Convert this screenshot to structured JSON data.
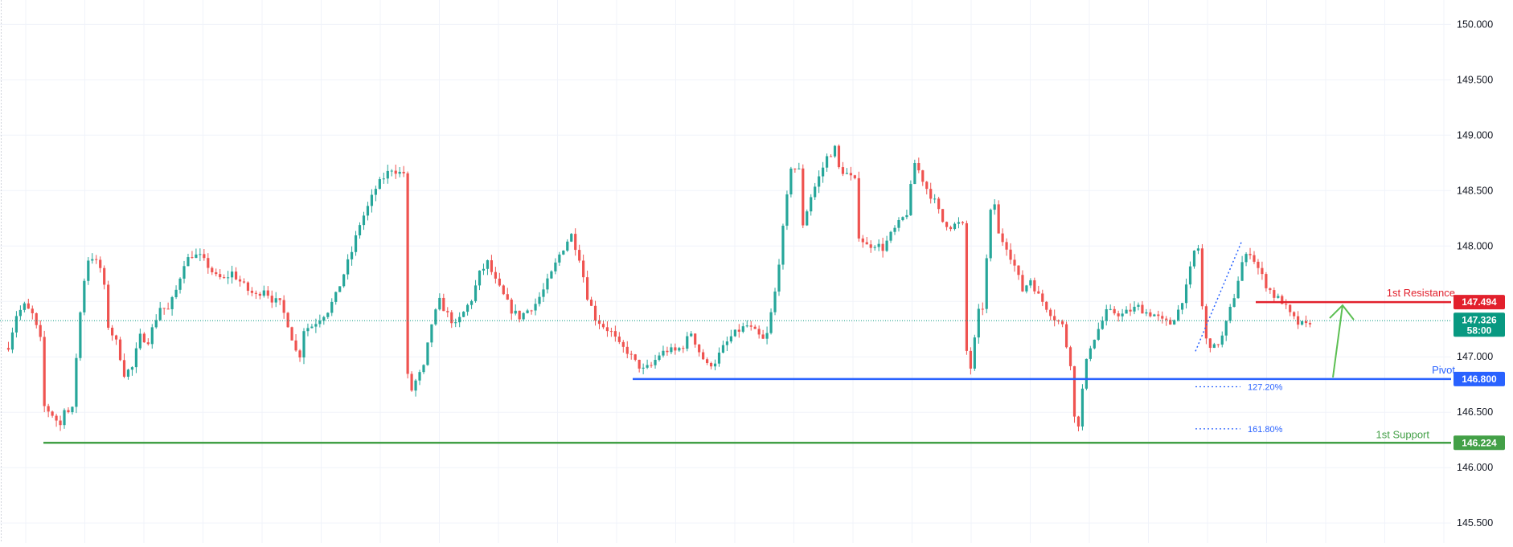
{
  "chart_data": {
    "type": "candlestick",
    "y_axis": {
      "ticks": [
        "145.500",
        "146.000",
        "146.500",
        "147.000",
        "147.500",
        "148.000",
        "148.500",
        "149.000",
        "149.500",
        "150.000"
      ],
      "range": [
        145.32,
        150.22
      ]
    },
    "colors": {
      "up": "#26a69a",
      "down": "#ef5350",
      "resistance": "#e2202c",
      "pivot": "#2962ff",
      "support": "#43a047",
      "arrow": "#5cbf52",
      "current_price": "#089981"
    },
    "current_price": {
      "value": 147.326,
      "label": "147.326",
      "countdown": "58:00"
    },
    "levels": [
      {
        "name": "1st Resistance",
        "price": 147.494,
        "label": "147.494",
        "color_key": "resistance"
      },
      {
        "name": "Pivot",
        "price": 146.8,
        "label": "146.800",
        "color_key": "pivot"
      },
      {
        "name": "1st Support",
        "price": 146.224,
        "label": "146.224",
        "color_key": "support"
      }
    ],
    "fib_extensions": [
      {
        "label": "127.20%",
        "price": 146.73
      },
      {
        "label": "161.80%",
        "price": 146.35
      }
    ],
    "price_path": [
      [
        0,
        147.1
      ],
      [
        2,
        147.38
      ],
      [
        4,
        147.46
      ],
      [
        6,
        147.38
      ],
      [
        8,
        147.15
      ],
      [
        9,
        146.55
      ],
      [
        11,
        146.48
      ],
      [
        13,
        146.38
      ],
      [
        14,
        146.55
      ],
      [
        15,
        146.5
      ],
      [
        16,
        146.52
      ],
      [
        17,
        147.0
      ],
      [
        18,
        147.4
      ],
      [
        19,
        147.7
      ],
      [
        20,
        147.88
      ],
      [
        21,
        147.9
      ],
      [
        23,
        147.8
      ],
      [
        24,
        147.62
      ],
      [
        25,
        147.28
      ],
      [
        27,
        147.13
      ],
      [
        28,
        147.0
      ],
      [
        29,
        146.85
      ],
      [
        31,
        146.9
      ],
      [
        32,
        147.05
      ],
      [
        33,
        147.18
      ],
      [
        35,
        147.15
      ],
      [
        36,
        147.25
      ],
      [
        38,
        147.45
      ],
      [
        40,
        147.42
      ],
      [
        42,
        147.6
      ],
      [
        44,
        147.85
      ],
      [
        46,
        147.92
      ],
      [
        48,
        147.9
      ],
      [
        50,
        147.82
      ],
      [
        52,
        147.72
      ],
      [
        54,
        147.7
      ],
      [
        56,
        147.76
      ],
      [
        58,
        147.68
      ],
      [
        60,
        147.6
      ],
      [
        62,
        147.55
      ],
      [
        64,
        147.62
      ],
      [
        66,
        147.52
      ],
      [
        68,
        147.48
      ],
      [
        70,
        147.3
      ],
      [
        72,
        147.05
      ],
      [
        73,
        147.02
      ],
      [
        74,
        147.25
      ],
      [
        76,
        147.28
      ],
      [
        78,
        147.35
      ],
      [
        80,
        147.42
      ],
      [
        82,
        147.55
      ],
      [
        84,
        147.75
      ],
      [
        86,
        147.95
      ],
      [
        88,
        148.2
      ],
      [
        90,
        148.35
      ],
      [
        92,
        148.52
      ],
      [
        94,
        148.62
      ],
      [
        96,
        148.7
      ],
      [
        98,
        148.66
      ],
      [
        99,
        148.66
      ],
      [
        100,
        146.82
      ],
      [
        101,
        146.7
      ],
      [
        102,
        146.78
      ],
      [
        104,
        146.9
      ],
      [
        106,
        147.3
      ],
      [
        108,
        147.5
      ],
      [
        110,
        147.38
      ],
      [
        112,
        147.28
      ],
      [
        114,
        147.4
      ],
      [
        116,
        147.52
      ],
      [
        118,
        147.75
      ],
      [
        120,
        147.85
      ],
      [
        122,
        147.68
      ],
      [
        124,
        147.55
      ],
      [
        126,
        147.42
      ],
      [
        128,
        147.36
      ],
      [
        130,
        147.42
      ],
      [
        132,
        147.48
      ],
      [
        134,
        147.6
      ],
      [
        136,
        147.75
      ],
      [
        138,
        147.92
      ],
      [
        140,
        148.05
      ],
      [
        141,
        148.1
      ],
      [
        143,
        147.9
      ],
      [
        145,
        147.55
      ],
      [
        147,
        147.35
      ],
      [
        149,
        147.28
      ],
      [
        151,
        147.22
      ],
      [
        153,
        147.1
      ],
      [
        155,
        147.05
      ],
      [
        157,
        146.95
      ],
      [
        159,
        146.88
      ],
      [
        161,
        146.92
      ],
      [
        163,
        147.02
      ],
      [
        165,
        147.06
      ],
      [
        167,
        147.05
      ],
      [
        169,
        147.1
      ],
      [
        171,
        147.22
      ],
      [
        173,
        147.05
      ],
      [
        175,
        146.92
      ],
      [
        177,
        146.96
      ],
      [
        179,
        147.08
      ],
      [
        181,
        147.18
      ],
      [
        183,
        147.24
      ],
      [
        185,
        147.28
      ],
      [
        187,
        147.22
      ],
      [
        189,
        147.15
      ],
      [
        190,
        147.2
      ],
      [
        192,
        147.58
      ],
      [
        194,
        148.15
      ],
      [
        196,
        148.72
      ],
      [
        198,
        148.68
      ],
      [
        199,
        148.2
      ],
      [
        201,
        148.45
      ],
      [
        203,
        148.62
      ],
      [
        205,
        148.8
      ],
      [
        207,
        148.88
      ],
      [
        208,
        148.7
      ],
      [
        210,
        148.65
      ],
      [
        212,
        148.58
      ],
      [
        213,
        148.1
      ],
      [
        215,
        148.0
      ],
      [
        217,
        148.02
      ],
      [
        219,
        147.98
      ],
      [
        221,
        148.1
      ],
      [
        223,
        148.2
      ],
      [
        225,
        148.3
      ],
      [
        227,
        148.75
      ],
      [
        228,
        148.68
      ],
      [
        230,
        148.52
      ],
      [
        232,
        148.4
      ],
      [
        234,
        148.22
      ],
      [
        236,
        148.18
      ],
      [
        238,
        148.2
      ],
      [
        239,
        148.18
      ],
      [
        240,
        147.05
      ],
      [
        241,
        146.9
      ],
      [
        242,
        147.15
      ],
      [
        243,
        147.4
      ],
      [
        244,
        147.45
      ],
      [
        246,
        148.3
      ],
      [
        247,
        148.38
      ],
      [
        248,
        148.1
      ],
      [
        250,
        148.0
      ],
      [
        252,
        147.82
      ],
      [
        254,
        147.6
      ],
      [
        256,
        147.7
      ],
      [
        258,
        147.55
      ],
      [
        260,
        147.45
      ],
      [
        262,
        147.35
      ],
      [
        264,
        147.28
      ],
      [
        265,
        147.1
      ],
      [
        266,
        146.95
      ],
      [
        267,
        146.45
      ],
      [
        268,
        146.4
      ],
      [
        269,
        146.7
      ],
      [
        270,
        146.95
      ],
      [
        271,
        147.1
      ],
      [
        273,
        147.25
      ],
      [
        275,
        147.4
      ],
      [
        277,
        147.4
      ],
      [
        279,
        147.38
      ],
      [
        281,
        147.42
      ],
      [
        283,
        147.45
      ],
      [
        285,
        147.4
      ],
      [
        287,
        147.38
      ],
      [
        289,
        147.32
      ],
      [
        291,
        147.3
      ],
      [
        293,
        147.42
      ],
      [
        295,
        147.62
      ],
      [
        297,
        147.95
      ],
      [
        298,
        147.98
      ],
      [
        299,
        147.45
      ],
      [
        300,
        147.15
      ],
      [
        302,
        147.08
      ],
      [
        304,
        147.18
      ],
      [
        305,
        147.3
      ],
      [
        307,
        147.55
      ],
      [
        309,
        147.85
      ],
      [
        311,
        147.95
      ],
      [
        313,
        147.8
      ],
      [
        315,
        147.65
      ],
      [
        317,
        147.55
      ],
      [
        319,
        147.5
      ],
      [
        321,
        147.38
      ],
      [
        323,
        147.3
      ],
      [
        325,
        147.28
      ],
      [
        326,
        147.32
      ]
    ]
  },
  "labels": {
    "resistance_text": "1st Resistance",
    "pivot_text": "Pivot",
    "support_text": "1st Support",
    "fib_127": "127.20%",
    "fib_161": "161.80%"
  }
}
